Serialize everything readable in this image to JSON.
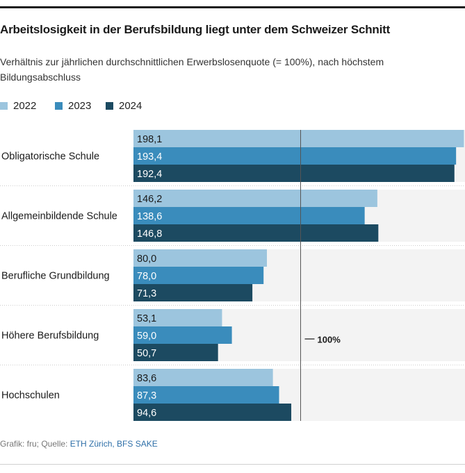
{
  "header": {
    "title": "Arbeitslosigkeit in der Berufsbildung liegt unter dem Schweizer Schnitt",
    "subtitle": "Verhältnis zur jährlichen durchschnittlichen Erwerbslosenquote (= 100%), nach höchstem Bildungsabschluss"
  },
  "legend": [
    {
      "label": "2022",
      "color": "#9cc5de"
    },
    {
      "label": "2023",
      "color": "#3a8cbc"
    },
    {
      "label": "2024",
      "color": "#1c4a61"
    }
  ],
  "footer": {
    "prefix": "Grafik: fru; Quelle: ",
    "source_links": "ETH Zürich, BFS SAKE"
  },
  "chart_data": {
    "type": "bar",
    "orientation": "horizontal",
    "title": "Arbeitslosigkeit in der Berufsbildung liegt unter dem Schweizer Schnitt",
    "subtitle": "Verhältnis zur jährlichen durchschnittlichen Erwerbslosenquote (= 100%), nach höchstem Bildungsabschluss",
    "categories": [
      "Obligatorische Schule",
      "Allgemeinbildende Schule",
      "Berufliche Grundbildung",
      "Höhere Berufsbildung",
      "Hochschulen"
    ],
    "series": [
      {
        "name": "2022",
        "color": "#9cc5de",
        "label_color": "#1a1a1a",
        "values": [
          198.1,
          146.2,
          80.0,
          53.1,
          83.6
        ],
        "labels": [
          "198,1",
          "146,2",
          "80,0",
          "53,1",
          "83,6"
        ]
      },
      {
        "name": "2023",
        "color": "#3a8cbc",
        "label_color": "#ffffff",
        "values": [
          193.4,
          138.6,
          78.0,
          59.0,
          87.3
        ],
        "labels": [
          "193,4",
          "138,6",
          "78,0",
          "59,0",
          "87,3"
        ]
      },
      {
        "name": "2024",
        "color": "#1c4a61",
        "label_color": "#ffffff",
        "values": [
          192.4,
          146.8,
          71.3,
          50.7,
          94.6
        ],
        "labels": [
          "192,4",
          "146,8",
          "71,3",
          "50,7",
          "94,6"
        ]
      }
    ],
    "reference_line": {
      "value": 100,
      "label": "100%"
    },
    "xlim": [
      0,
      198.5
    ],
    "xlabel": "",
    "ylabel": "",
    "grid": false,
    "legend_position": "top-left",
    "background_band_color": "#f3f3f3"
  }
}
